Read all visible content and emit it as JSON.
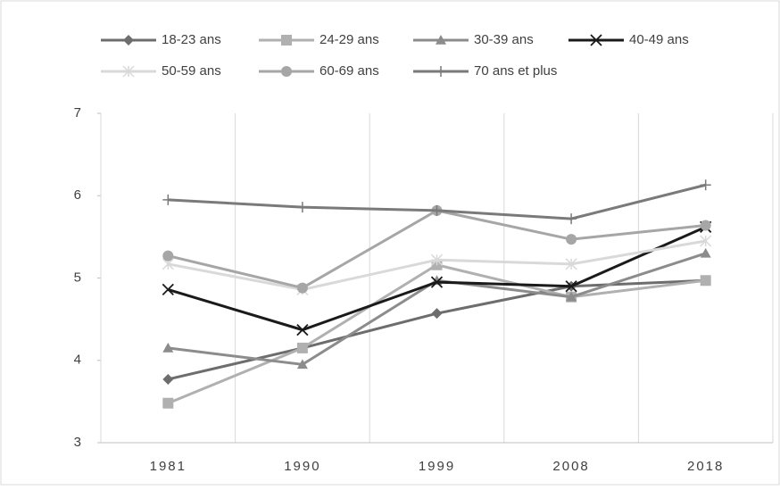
{
  "chart_data": {
    "type": "line",
    "categories": [
      "1981",
      "1990",
      "1999",
      "2008",
      "2018"
    ],
    "series": [
      {
        "name": "18-23 ans",
        "color": "#6d6d6d",
        "marker": "diamond",
        "values": [
          3.77,
          4.15,
          4.57,
          4.9,
          4.97
        ]
      },
      {
        "name": "24-29 ans",
        "color": "#b0b0b0",
        "marker": "square",
        "values": [
          3.48,
          4.15,
          5.16,
          4.77,
          4.97
        ]
      },
      {
        "name": "30-39 ans",
        "color": "#8c8c8c",
        "marker": "triangle",
        "values": [
          4.15,
          3.95,
          4.97,
          4.77,
          5.3
        ]
      },
      {
        "name": "40-49 ans",
        "color": "#1a1a1a",
        "marker": "x",
        "values": [
          4.86,
          4.37,
          4.95,
          4.9,
          5.62
        ]
      },
      {
        "name": "50-59 ans",
        "color": "#d9d9d9",
        "marker": "star",
        "values": [
          5.17,
          4.86,
          5.22,
          5.17,
          5.45
        ]
      },
      {
        "name": "60-69 ans",
        "color": "#a6a6a6",
        "marker": "circle",
        "values": [
          5.27,
          4.88,
          5.82,
          5.47,
          5.64
        ]
      },
      {
        "name": "70 ans et plus",
        "color": "#7a7a7a",
        "marker": "plus",
        "values": [
          5.95,
          5.86,
          5.82,
          5.72,
          6.13
        ]
      }
    ],
    "ylim": [
      3,
      7
    ],
    "yticks": [
      3,
      4,
      5,
      6,
      7
    ],
    "grid": "x",
    "legend": "top"
  }
}
